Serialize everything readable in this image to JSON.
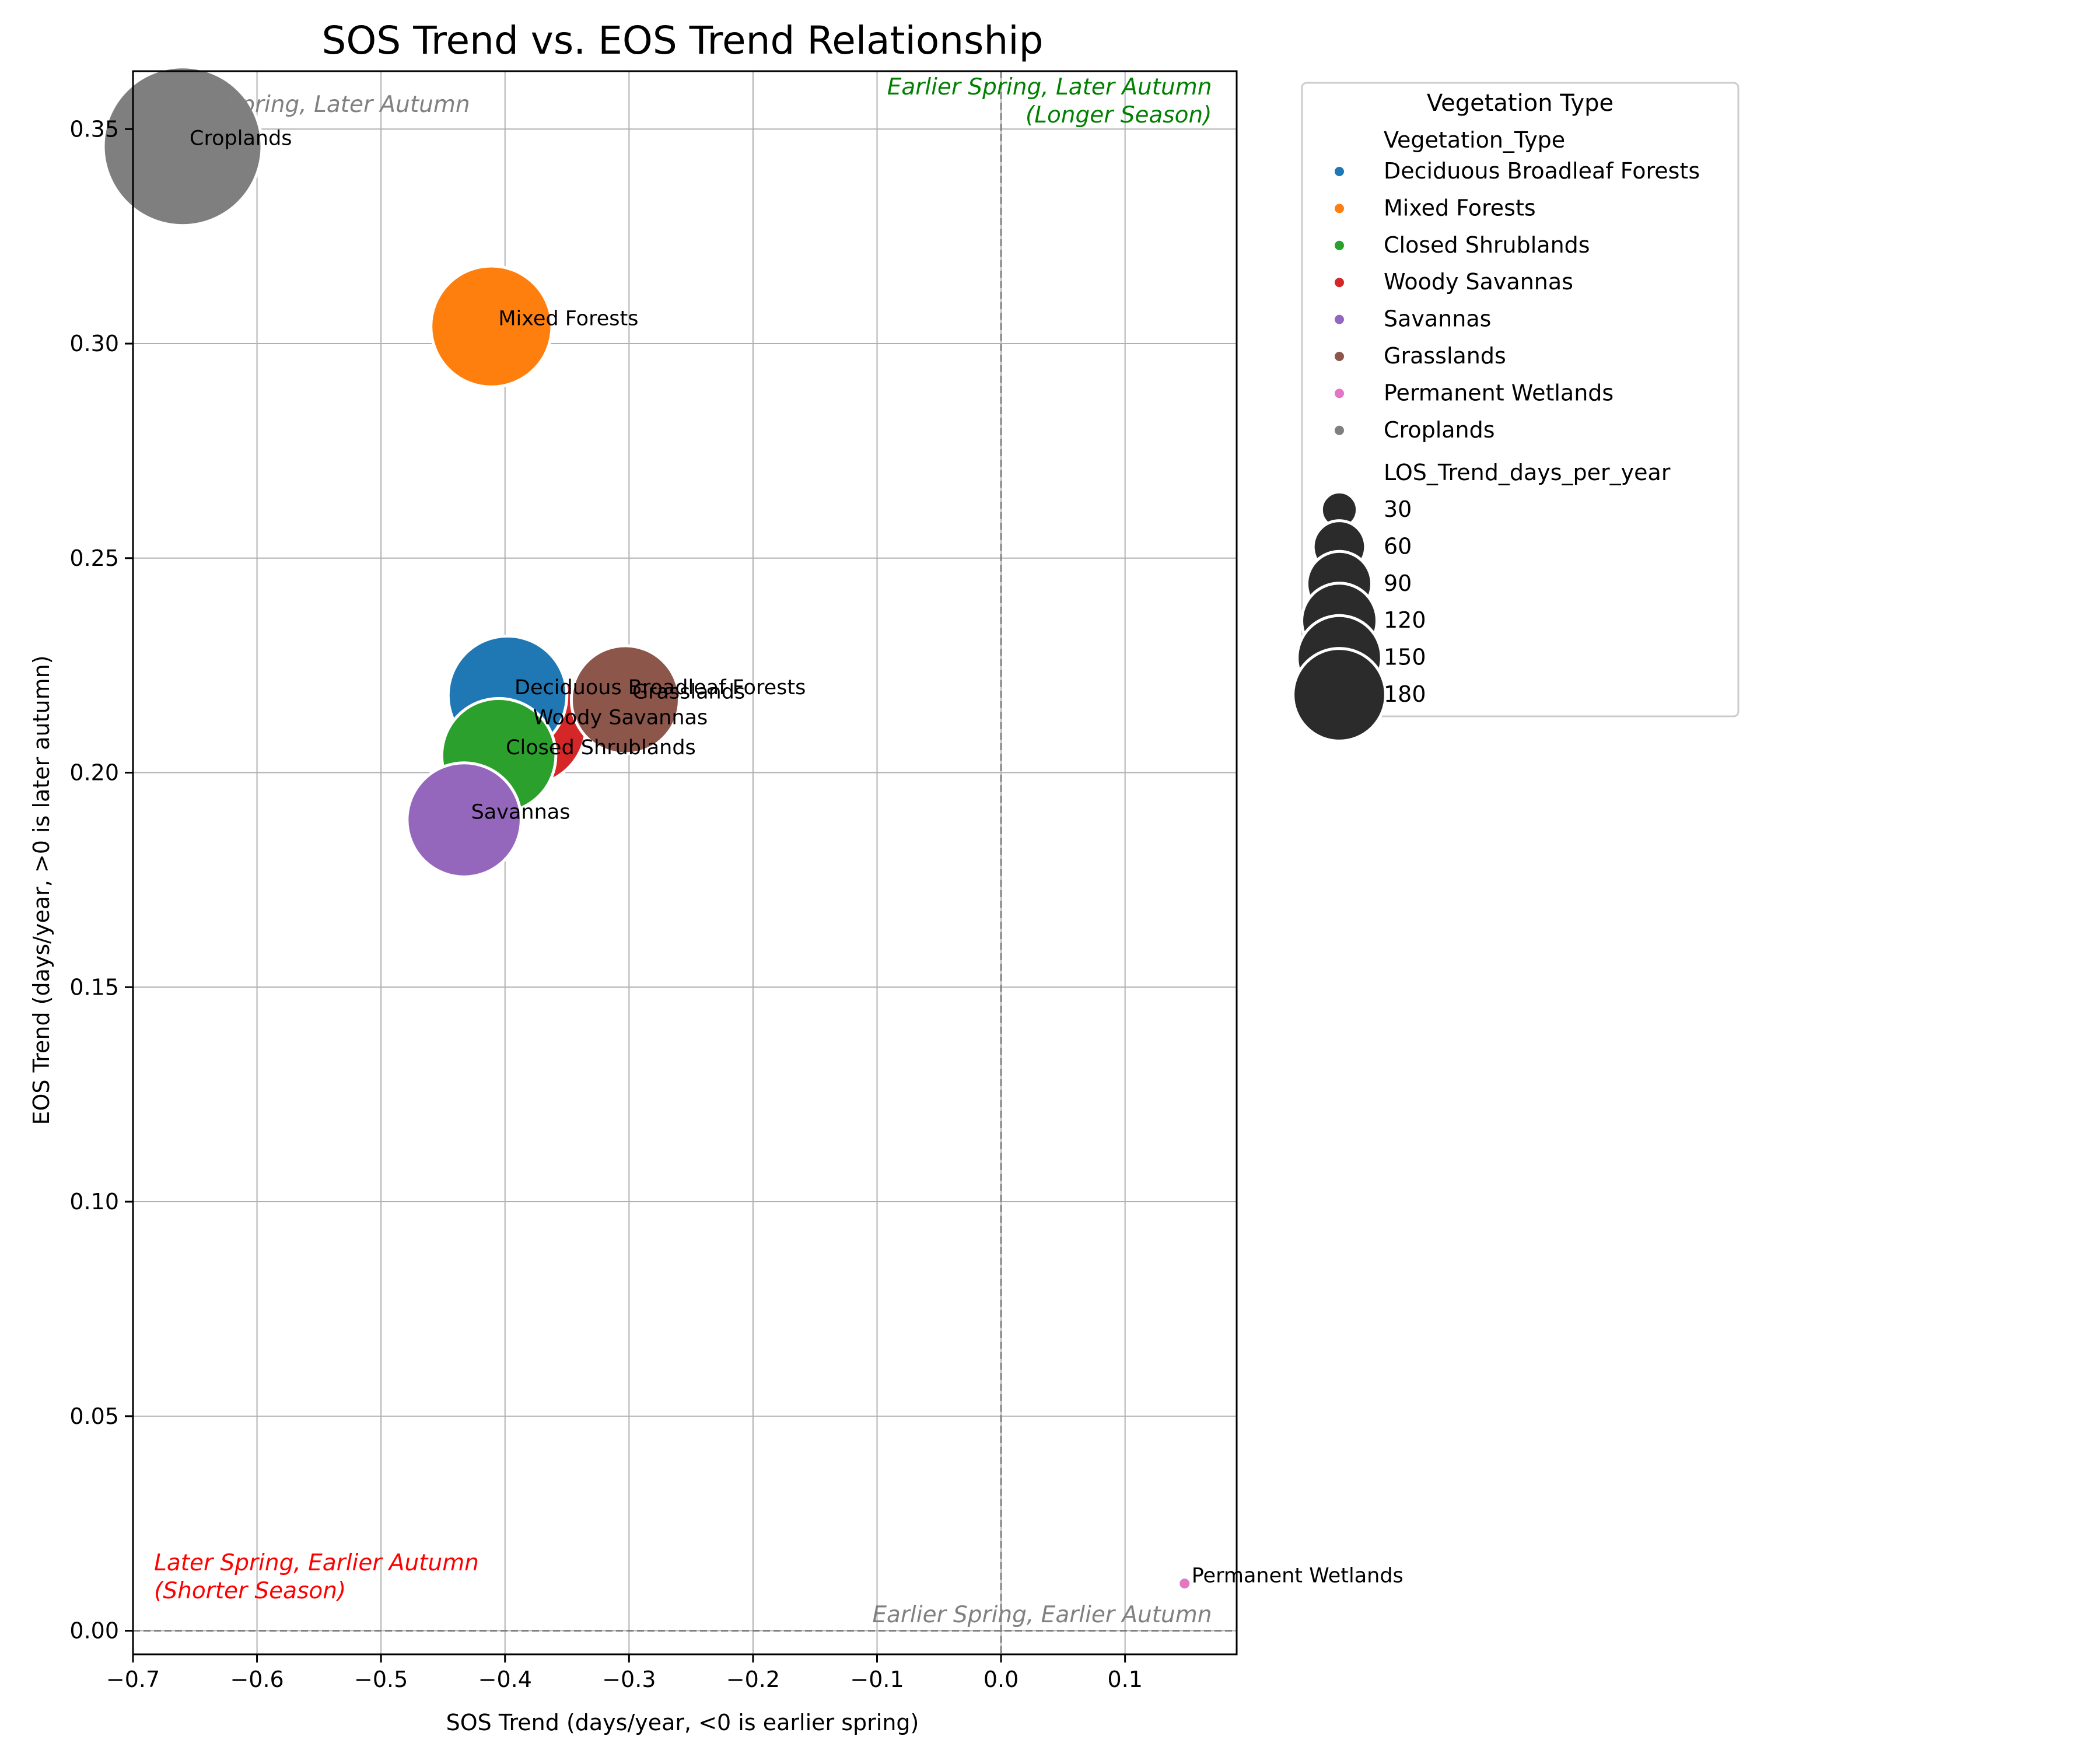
{
  "chart_data": {
    "type": "scatter",
    "title": "SOS Trend vs. EOS Trend Relationship",
    "xlabel": "SOS Trend (days/year, <0 is earlier spring)",
    "ylabel": "EOS Trend (days/year, >0 is later autumn)",
    "xlim": [
      -0.7,
      0.19
    ],
    "ylim": [
      -0.0055,
      0.3635
    ],
    "xticks": [
      -0.7,
      -0.6,
      -0.5,
      -0.4,
      -0.3,
      -0.2,
      -0.1,
      0.0,
      0.1
    ],
    "xtick_labels": [
      "−0.7",
      "−0.6",
      "−0.5",
      "−0.4",
      "−0.3",
      "−0.2",
      "−0.1",
      "0.0",
      "0.1"
    ],
    "yticks": [
      0.0,
      0.05,
      0.1,
      0.15,
      0.2,
      0.25,
      0.3,
      0.35
    ],
    "ytick_labels": [
      "0.00",
      "0.05",
      "0.10",
      "0.15",
      "0.20",
      "0.25",
      "0.30",
      "0.35"
    ],
    "grid": true,
    "reference_lines": {
      "x": 0.0,
      "y": 0.0,
      "style": "dashed",
      "color": "#808080"
    },
    "size_scale": {
      "min_value": 5,
      "max_value": 190
    },
    "points": [
      {
        "name": "Deciduous Broadleaf Forests",
        "x": -0.398,
        "y": 0.218,
        "los": 108,
        "color": "#1f77b4"
      },
      {
        "name": "Mixed Forests",
        "x": -0.411,
        "y": 0.304,
        "los": 112,
        "color": "#ff7f0e"
      },
      {
        "name": "Closed Shrublands",
        "x": -0.405,
        "y": 0.204,
        "los": 100,
        "color": "#2ca02c"
      },
      {
        "name": "Woody Savannas",
        "x": -0.383,
        "y": 0.211,
        "los": 110,
        "color": "#d62728"
      },
      {
        "name": "Savannas",
        "x": -0.433,
        "y": 0.189,
        "los": 100,
        "color": "#9467bd"
      },
      {
        "name": "Grasslands",
        "x": -0.303,
        "y": 0.217,
        "los": 90,
        "color": "#8c564b"
      },
      {
        "name": "Permanent Wetlands",
        "x": 0.148,
        "y": 0.011,
        "los": 5,
        "color": "#e377c2"
      },
      {
        "name": "Croplands",
        "x": -0.66,
        "y": 0.346,
        "los": 190,
        "color": "#7f7f7f"
      }
    ],
    "annotations": [
      {
        "line1": "Earlier Spring, Later Autumn",
        "line2": "(Longer Season)",
        "color": "#008000",
        "x": 0.17,
        "y": 0.354,
        "anchor": "end"
      },
      {
        "line1": "Later Spring, Earlier Autumn",
        "line2": "(Shorter Season)",
        "color": "#ff0000",
        "x": -0.683,
        "y": 0.01,
        "anchor": "start"
      },
      {
        "line1": "Earlier Spring, Earlier Autumn",
        "line2": "",
        "color": "#808080",
        "x": 0.17,
        "y": 0.002,
        "anchor": "end"
      },
      {
        "line1": "Spring, Later Autumn",
        "line2": "",
        "color": "#808080",
        "x": -0.625,
        "y": 0.354,
        "anchor": "start"
      }
    ],
    "legend": {
      "position": "outside-right",
      "title": "Vegetation Type",
      "hue_header": "Vegetation_Type",
      "size_header": "LOS_Trend_days_per_year",
      "size_entries": [
        {
          "label": "30",
          "value": 30
        },
        {
          "label": "60",
          "value": 60
        },
        {
          "label": "90",
          "value": 90
        },
        {
          "label": "120",
          "value": 120
        },
        {
          "label": "150",
          "value": 150
        },
        {
          "label": "180",
          "value": 180
        }
      ],
      "size_marker_color": "#2b2b2b"
    }
  }
}
